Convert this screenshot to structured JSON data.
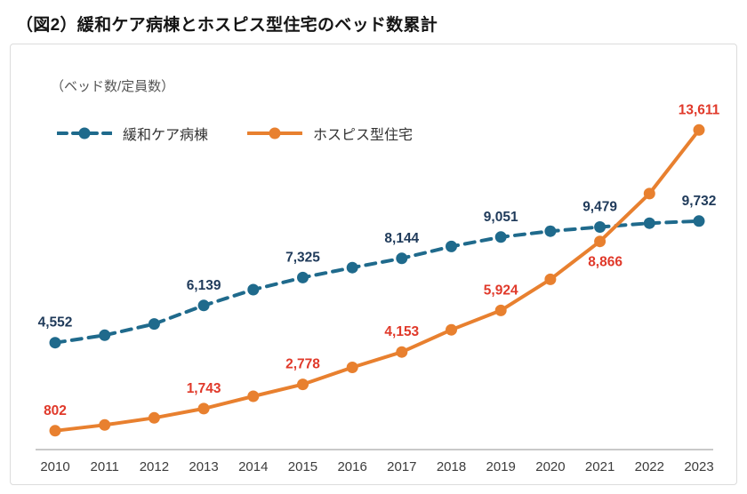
{
  "chart_data": {
    "type": "line",
    "title": "（図2）緩和ケア病棟とホスピス型住宅のベッド数累計",
    "unit_label": "（ベッド数/定員数）",
    "categories": [
      "2010",
      "2011",
      "2012",
      "2013",
      "2014",
      "2015",
      "2016",
      "2017",
      "2018",
      "2019",
      "2020",
      "2021",
      "2022",
      "2023"
    ],
    "ylim": [
      0,
      14000
    ],
    "grid": false,
    "legend_position": "top-left",
    "series": [
      {
        "name": "緩和ケア病棟",
        "line_style": "dashed",
        "color": "#1f6a8c",
        "label_color": "#1f3a5a",
        "values": [
          4552,
          4870,
          5350,
          6139,
          6810,
          7325,
          7750,
          8144,
          8650,
          9051,
          9300,
          9479,
          9640,
          9732
        ],
        "labeled_points": [
          {
            "year": "2010",
            "text": "4,552"
          },
          {
            "year": "2013",
            "text": "6,139"
          },
          {
            "year": "2015",
            "text": "7,325"
          },
          {
            "year": "2017",
            "text": "8,144"
          },
          {
            "year": "2019",
            "text": "9,051"
          },
          {
            "year": "2021",
            "text": "9,479"
          },
          {
            "year": "2023",
            "text": "9,732"
          }
        ]
      },
      {
        "name": "ホスピス型住宅",
        "line_style": "solid",
        "color": "#e8802f",
        "label_color": "#e0392a",
        "values": [
          802,
          1050,
          1350,
          1743,
          2270,
          2778,
          3500,
          4153,
          5100,
          5924,
          7250,
          8866,
          10900,
          13611
        ],
        "labeled_points": [
          {
            "year": "2010",
            "text": "802"
          },
          {
            "year": "2013",
            "text": "1,743"
          },
          {
            "year": "2015",
            "text": "2,778"
          },
          {
            "year": "2017",
            "text": "4,153"
          },
          {
            "year": "2019",
            "text": "5,924"
          },
          {
            "year": "2021",
            "text": "8,866",
            "dx": 6,
            "dy": 28
          },
          {
            "year": "2023",
            "text": "13,611"
          }
        ]
      }
    ]
  }
}
